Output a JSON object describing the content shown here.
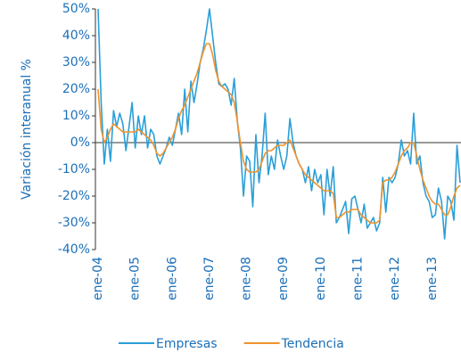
{
  "chart_data": {
    "type": "line",
    "y_label": "Variación interanual %",
    "categories": [
      "ene-04",
      null,
      null,
      null,
      null,
      null,
      null,
      null,
      null,
      null,
      null,
      null,
      "ene-05",
      null,
      null,
      null,
      null,
      null,
      null,
      null,
      null,
      null,
      null,
      null,
      "ene-06",
      null,
      null,
      null,
      null,
      null,
      null,
      null,
      null,
      null,
      null,
      null,
      "ene-07",
      null,
      null,
      null,
      null,
      null,
      null,
      null,
      null,
      null,
      null,
      null,
      "ene-08",
      null,
      null,
      null,
      null,
      null,
      null,
      null,
      null,
      null,
      null,
      null,
      "ene-09",
      null,
      null,
      null,
      null,
      null,
      null,
      null,
      null,
      null,
      null,
      null,
      "ene-10",
      null,
      null,
      null,
      null,
      null,
      null,
      null,
      null,
      null,
      null,
      null,
      "ene-11",
      null,
      null,
      null,
      null,
      null,
      null,
      null,
      null,
      null,
      null,
      null,
      "ene-12",
      null,
      null,
      null,
      null,
      null,
      null,
      null,
      null,
      null,
      null,
      null,
      "ene-13",
      null,
      null,
      null,
      null,
      null,
      null,
      null,
      null,
      null
    ],
    "series": [
      {
        "name": "Empresas",
        "color": "#2a9fd8",
        "values": [
          50,
          15,
          -8,
          5,
          -7,
          12,
          6,
          11,
          7,
          -3,
          6,
          15,
          -2,
          10,
          3,
          10,
          -2,
          5,
          3,
          -5,
          -8,
          -5,
          -2,
          2,
          -1,
          5,
          11,
          3,
          20,
          4,
          23,
          15,
          22,
          30,
          35,
          42,
          50,
          40,
          30,
          22,
          21,
          22,
          20,
          14,
          24,
          8,
          -2,
          -20,
          -5,
          -7,
          -24,
          3,
          -15,
          -5,
          11,
          -12,
          -5,
          -10,
          1,
          -5,
          -10,
          -5,
          9,
          0,
          -5,
          -8,
          -10,
          -15,
          -9,
          -18,
          -10,
          -15,
          -12,
          -27,
          -10,
          -20,
          -9,
          -30,
          -28,
          -25,
          -22,
          -34,
          -21,
          -20,
          -25,
          -30,
          -23,
          -32,
          -30,
          -28,
          -33,
          -30,
          -13,
          -26,
          -13,
          -15,
          -13,
          -8,
          1,
          -5,
          -3,
          -8,
          11,
          -8,
          -5,
          -15,
          -20,
          -22,
          -28,
          -27,
          -17,
          -22,
          -36,
          -20,
          -22,
          -29,
          -1,
          -15
        ]
      },
      {
        "name": "Tendencia",
        "color": "#f0932b",
        "values": [
          20,
          5,
          0,
          2,
          5,
          7,
          6,
          5,
          4,
          4,
          4,
          4,
          4,
          5,
          4,
          3,
          2,
          1,
          -1,
          -4,
          -5,
          -4,
          -2,
          0,
          2,
          5,
          9,
          12,
          14,
          17,
          20,
          23,
          26,
          30,
          34,
          37,
          37,
          33,
          27,
          23,
          21,
          20,
          19,
          18,
          15,
          8,
          0,
          -7,
          -10,
          -11,
          -11,
          -11,
          -10,
          -7,
          -4,
          -3,
          -3,
          -2,
          -1,
          -1,
          -1,
          0,
          1,
          -2,
          -5,
          -8,
          -10,
          -12,
          -13,
          -14,
          -15,
          -16,
          -17,
          -18,
          -18,
          -18,
          -19,
          -28,
          -28,
          -27,
          -26,
          -26,
          -25,
          -25,
          -25,
          -27,
          -28,
          -29,
          -30,
          -30,
          -30,
          -29,
          -15,
          -14,
          -14,
          -13,
          -11,
          -8,
          -5,
          -3,
          -2,
          0,
          0,
          -5,
          -10,
          -14,
          -17,
          -20,
          -22,
          -23,
          -23,
          -25,
          -27,
          -27,
          -24,
          -20,
          -17,
          -16
        ]
      }
    ],
    "ylim": [
      -40,
      50
    ],
    "yticks": [
      {
        "value": -40,
        "label": "-40%"
      },
      {
        "value": -30,
        "label": "-30%"
      },
      {
        "value": -20,
        "label": "-20%"
      },
      {
        "value": -10,
        "label": "-10%"
      },
      {
        "value": 0,
        "label": "0%"
      },
      {
        "value": 10,
        "label": "10%"
      },
      {
        "value": 20,
        "label": "20%"
      },
      {
        "value": 30,
        "label": "30%"
      },
      {
        "value": 40,
        "label": "40%"
      },
      {
        "value": 50,
        "label": "50%"
      }
    ],
    "legend": "bottom"
  }
}
